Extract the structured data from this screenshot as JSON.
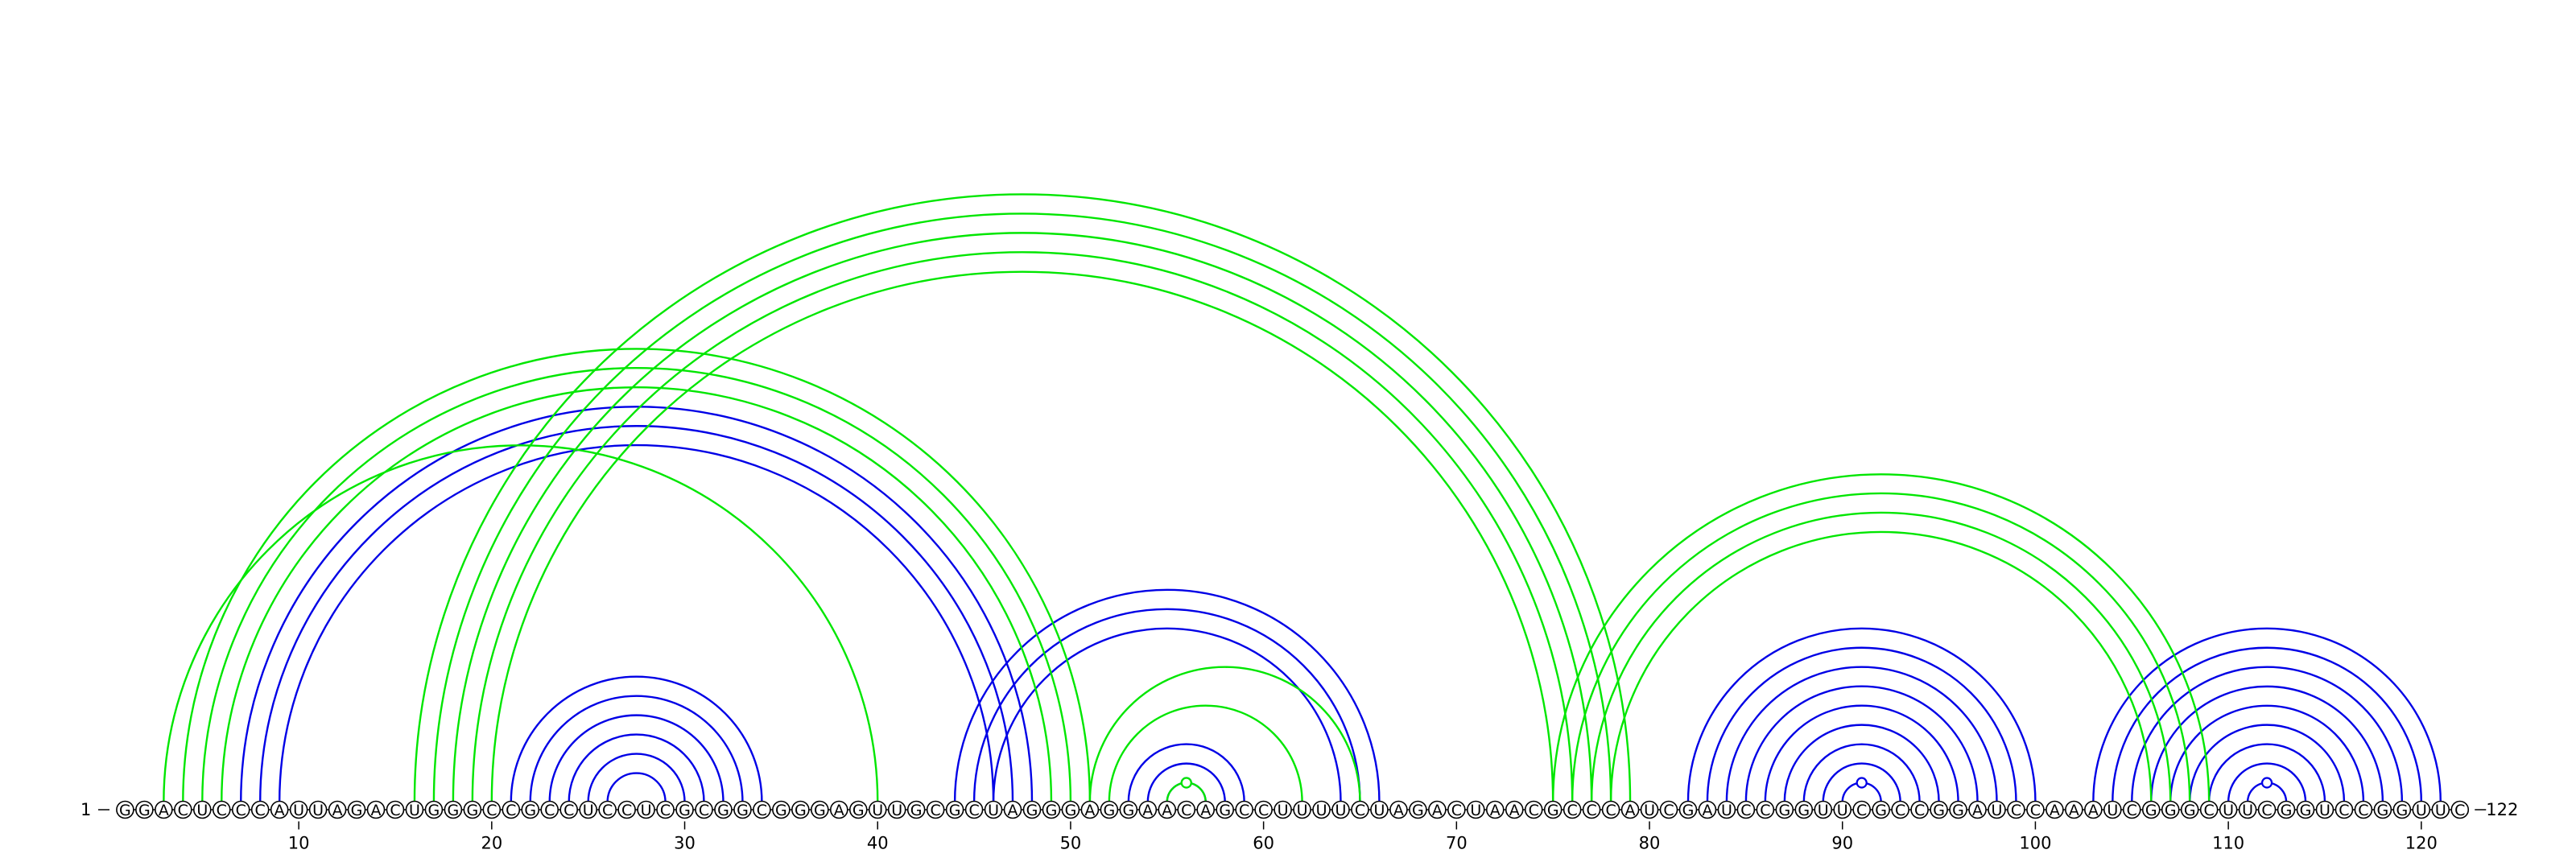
{
  "sequence": "GGACUCCCAUUAGACUGGGCCGCCUCCUCGCGGCGGGAGUUGCGCUAGGGAGGAACAGCCUUUUCUAGACUAACGCCCAUCGAUCCGGUUCGCCGGAUCCAAAUCGGGCUUCGGUCCGGUUC",
  "start_label": "1",
  "end_label": "122",
  "ticks": [
    "10",
    "20",
    "30",
    "40",
    "50",
    "60",
    "70",
    "80",
    "90",
    "100",
    "110",
    "120"
  ],
  "colors": {
    "reference": "#0000e6",
    "predicted": "#00e600"
  },
  "arcs": [
    {
      "i": 7,
      "j": 48,
      "color": "reference"
    },
    {
      "i": 8,
      "j": 47,
      "color": "reference"
    },
    {
      "i": 9,
      "j": 46,
      "color": "reference"
    },
    {
      "i": 21,
      "j": 34,
      "color": "reference"
    },
    {
      "i": 22,
      "j": 33,
      "color": "reference"
    },
    {
      "i": 23,
      "j": 32,
      "color": "reference"
    },
    {
      "i": 24,
      "j": 31,
      "color": "reference"
    },
    {
      "i": 25,
      "j": 30,
      "color": "reference"
    },
    {
      "i": 26,
      "j": 29,
      "color": "reference"
    },
    {
      "i": 44,
      "j": 66,
      "color": "reference"
    },
    {
      "i": 45,
      "j": 65,
      "color": "reference"
    },
    {
      "i": 46,
      "j": 64,
      "color": "reference"
    },
    {
      "i": 53,
      "j": 59,
      "color": "reference"
    },
    {
      "i": 54,
      "j": 58,
      "color": "reference"
    },
    {
      "i": 55,
      "j": 57,
      "color": "reference"
    },
    {
      "i": 82,
      "j": 100,
      "color": "reference"
    },
    {
      "i": 83,
      "j": 99,
      "color": "reference"
    },
    {
      "i": 84,
      "j": 98,
      "color": "reference"
    },
    {
      "i": 85,
      "j": 97,
      "color": "reference"
    },
    {
      "i": 86,
      "j": 96,
      "color": "reference"
    },
    {
      "i": 87,
      "j": 95,
      "color": "reference"
    },
    {
      "i": 88,
      "j": 94,
      "color": "reference"
    },
    {
      "i": 89,
      "j": 93,
      "color": "reference"
    },
    {
      "i": 90,
      "j": 92,
      "color": "reference"
    },
    {
      "i": 103,
      "j": 121,
      "color": "reference"
    },
    {
      "i": 104,
      "j": 120,
      "color": "reference"
    },
    {
      "i": 105,
      "j": 119,
      "color": "reference"
    },
    {
      "i": 106,
      "j": 118,
      "color": "reference"
    },
    {
      "i": 107,
      "j": 117,
      "color": "reference"
    },
    {
      "i": 108,
      "j": 116,
      "color": "reference"
    },
    {
      "i": 109,
      "j": 115,
      "color": "reference"
    },
    {
      "i": 110,
      "j": 114,
      "color": "reference"
    },
    {
      "i": 111,
      "j": 113,
      "color": "reference"
    },
    {
      "i": 3,
      "j": 40,
      "color": "predicted"
    },
    {
      "i": 4,
      "j": 51,
      "color": "predicted"
    },
    {
      "i": 5,
      "j": 50,
      "color": "predicted"
    },
    {
      "i": 6,
      "j": 49,
      "color": "predicted"
    },
    {
      "i": 16,
      "j": 79,
      "color": "predicted"
    },
    {
      "i": 17,
      "j": 78,
      "color": "predicted"
    },
    {
      "i": 18,
      "j": 77,
      "color": "predicted"
    },
    {
      "i": 19,
      "j": 76,
      "color": "predicted"
    },
    {
      "i": 20,
      "j": 75,
      "color": "predicted"
    },
    {
      "i": 51,
      "j": 65,
      "color": "predicted"
    },
    {
      "i": 52,
      "j": 62,
      "color": "predicted"
    },
    {
      "i": 55,
      "j": 57,
      "color": "predicted"
    },
    {
      "i": 75,
      "j": 109,
      "color": "predicted"
    },
    {
      "i": 76,
      "j": 108,
      "color": "predicted"
    },
    {
      "i": 77,
      "j": 107,
      "color": "predicted"
    },
    {
      "i": 78,
      "j": 106,
      "color": "predicted"
    }
  ]
}
